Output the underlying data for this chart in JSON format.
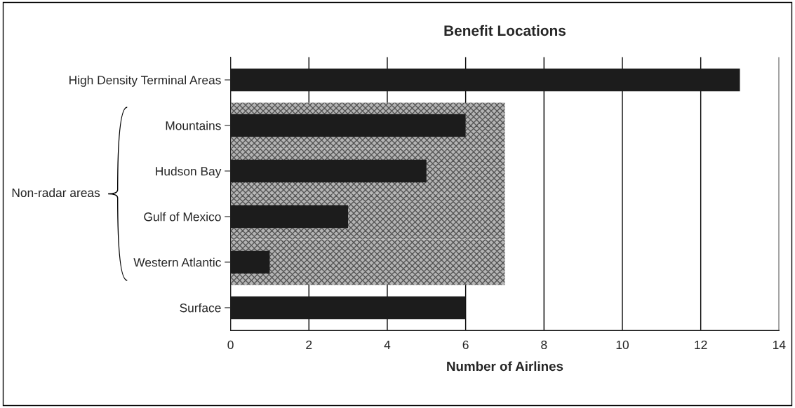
{
  "chart_data": {
    "type": "bar",
    "orientation": "horizontal",
    "title": "Benefit Locations",
    "xlabel": "Number of Airlines",
    "categories": [
      "High Density Terminal Areas",
      "Mountains",
      "Hudson Bay",
      "Gulf of Mexico",
      "Western Atlantic",
      "Surface"
    ],
    "series": [
      {
        "color": "#b4b4b4",
        "values": [
          null,
          7,
          7,
          7,
          7,
          null
        ]
      },
      {
        "color": "#1c1c1c",
        "values": [
          13,
          6,
          5,
          3,
          1,
          6
        ]
      }
    ],
    "xlim": [
      0,
      14
    ],
    "xticks": [
      0,
      2,
      4,
      6,
      8,
      10,
      12,
      14
    ],
    "grid": "x",
    "annotations": [
      "Non-radar areas"
    ]
  }
}
